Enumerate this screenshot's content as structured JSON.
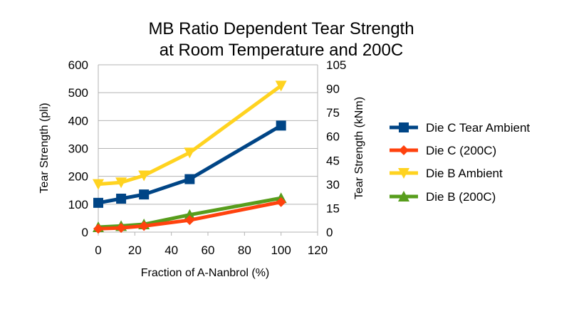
{
  "chart_data": {
    "type": "line",
    "title_line1": "MB Ratio Dependent Tear Strength",
    "title_line2": "at Room Temperature and 200C",
    "xlabel": "Fraction of A-Nanbrol (%)",
    "ylabel_left": "Tear Strength (pli)",
    "ylabel_right": "Tear Strength (kNm)",
    "xlim": [
      0,
      120
    ],
    "ylim_left": [
      0,
      600
    ],
    "ylim_right": [
      0,
      105
    ],
    "x_ticks": [
      0,
      20,
      40,
      60,
      80,
      100,
      120
    ],
    "y_left_ticks": [
      0,
      100,
      200,
      300,
      400,
      500,
      600
    ],
    "y_right_ticks": [
      0,
      15,
      30,
      45,
      60,
      75,
      90,
      105
    ],
    "grid": "horizontal",
    "legend_position": "right",
    "series": [
      {
        "name": "Die C Tear Ambient",
        "color": "#004586",
        "marker": "square",
        "x": [
          0,
          12.5,
          25,
          50,
          100
        ],
        "y": [
          105,
          120,
          135,
          190,
          382
        ]
      },
      {
        "name": "Die C (200C)",
        "color": "#ff420e",
        "marker": "diamond",
        "x": [
          0,
          12.5,
          25,
          50,
          100
        ],
        "y": [
          12,
          15,
          22,
          43,
          108
        ]
      },
      {
        "name": "Die B Ambient",
        "color": "#ffd320",
        "marker": "triangle-down",
        "x": [
          0,
          12.5,
          25,
          50,
          100
        ],
        "y": [
          172,
          178,
          203,
          285,
          525
        ]
      },
      {
        "name": "Die B (200C)",
        "color": "#579d1c",
        "marker": "triangle-up",
        "x": [
          0,
          12.5,
          25,
          50,
          100
        ],
        "y": [
          18,
          22,
          28,
          62,
          122
        ]
      }
    ]
  }
}
